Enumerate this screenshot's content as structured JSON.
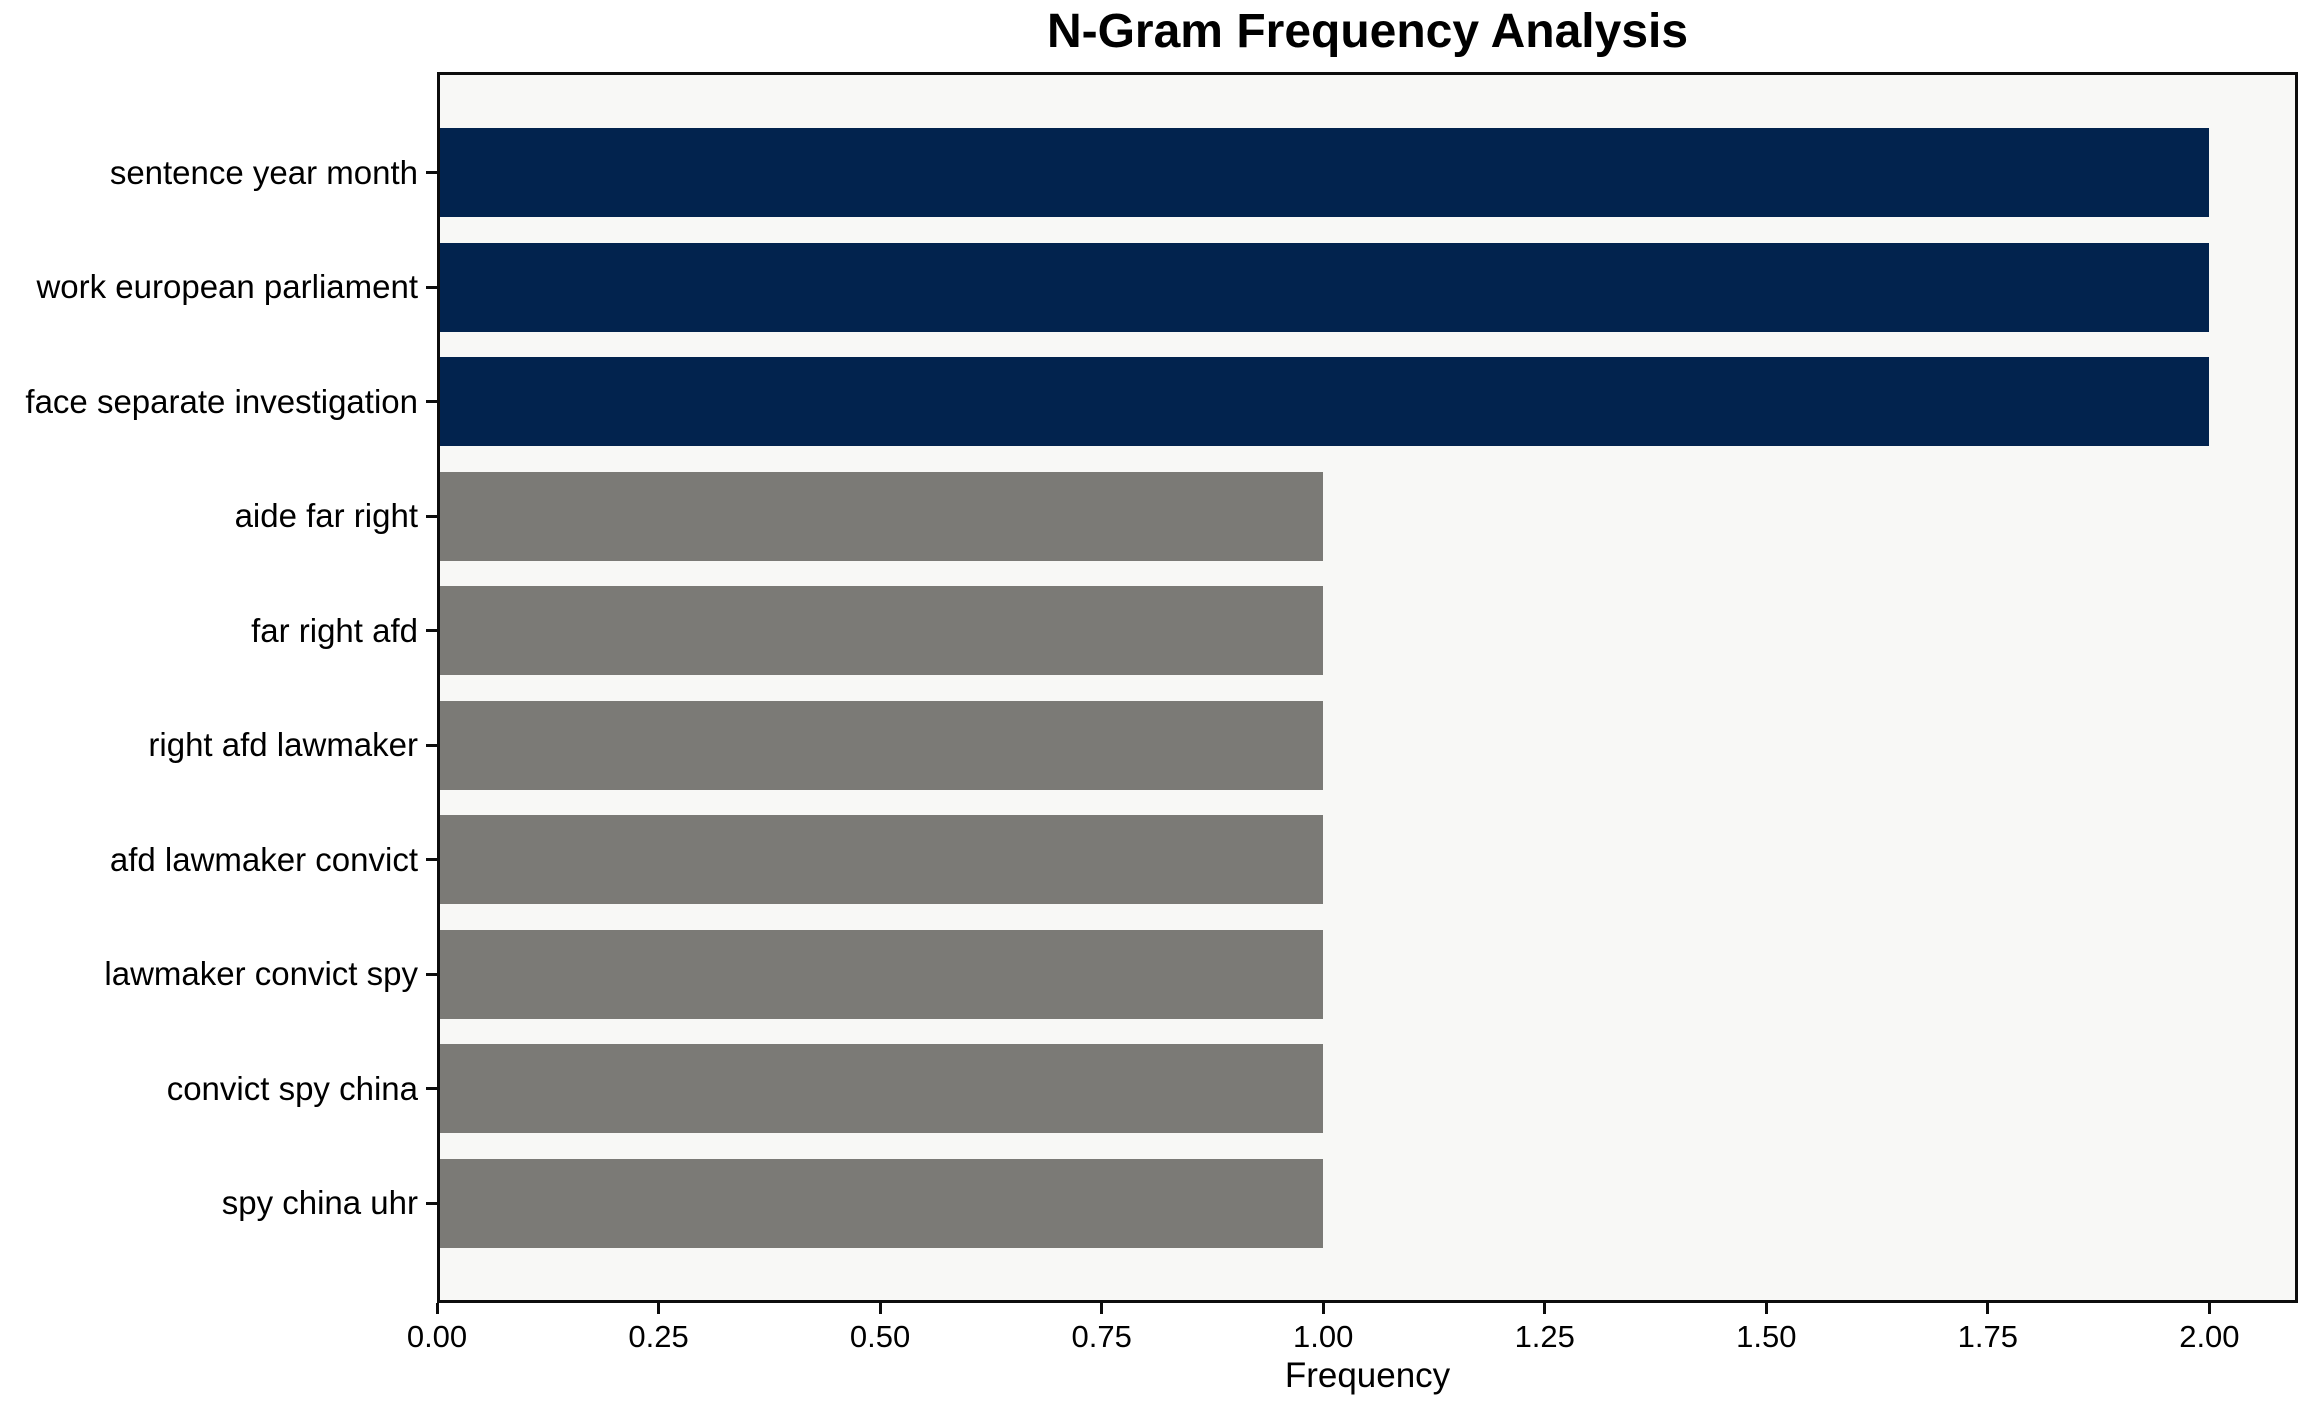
{
  "chart_data": {
    "type": "bar",
    "orientation": "horizontal",
    "title": "N-Gram Frequency Analysis",
    "xlabel": "Frequency",
    "ylabel": "",
    "categories": [
      "sentence year month",
      "work european parliament",
      "face separate investigation",
      "aide far right",
      "far right afd",
      "right afd lawmaker",
      "afd lawmaker convict",
      "lawmaker convict spy",
      "convict spy china",
      "spy china uhr"
    ],
    "values": [
      2,
      2,
      2,
      1,
      1,
      1,
      1,
      1,
      1,
      1
    ],
    "bar_colors": [
      "#02234e",
      "#02234e",
      "#02234e",
      "#7b7a76",
      "#7b7a76",
      "#7b7a76",
      "#7b7a76",
      "#7b7a76",
      "#7b7a76",
      "#7b7a76"
    ],
    "highlight_color": "#02234e",
    "default_color": "#7b7a76",
    "xlim": [
      0,
      2.1
    ],
    "xticks": [
      0,
      0.25,
      0.5,
      0.75,
      1.0,
      1.25,
      1.5,
      1.75,
      2.0
    ],
    "xtick_labels": [
      "0.00",
      "0.25",
      "0.50",
      "0.75",
      "1.00",
      "1.25",
      "1.50",
      "1.75",
      "2.00"
    ],
    "grid": false,
    "legend": false,
    "plot_bg": "#f8f8f6",
    "fig_bg": "#ffffff",
    "spine_color": "#0d0d0d",
    "text_color": "#000000"
  }
}
